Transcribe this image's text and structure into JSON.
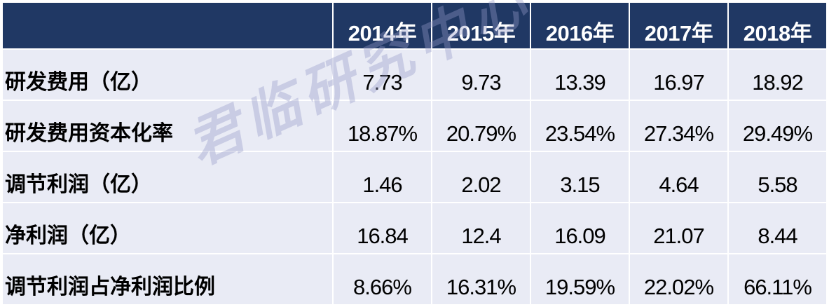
{
  "table": {
    "corner": "",
    "years": [
      "2014年",
      "2015年",
      "2016年",
      "2017年",
      "2018年"
    ],
    "rows": [
      {
        "label": "研发费用（亿）",
        "values": [
          "7.73",
          "9.73",
          "13.39",
          "16.97",
          "18.92"
        ]
      },
      {
        "label": "研发费用资本化率",
        "values": [
          "18.87%",
          "20.79%",
          "23.54%",
          "27.34%",
          "29.49%"
        ]
      },
      {
        "label": "调节利润（亿）",
        "values": [
          "1.46",
          "2.02",
          "3.15",
          "4.64",
          "5.58"
        ]
      },
      {
        "label": "净利润（亿）",
        "values": [
          "16.84",
          "12.4",
          "16.09",
          "21.07",
          "8.44"
        ]
      },
      {
        "label": "调节利润占净利润比例",
        "values": [
          "8.66%",
          "16.31%",
          "19.59%",
          "22.02%",
          "66.11%"
        ]
      }
    ]
  },
  "watermark": "君临研究中心",
  "colors": {
    "header_bg": "#203864",
    "row_bg": "#E9EBF5",
    "header_text": "#FFFFFF",
    "body_text": "#000000"
  }
}
